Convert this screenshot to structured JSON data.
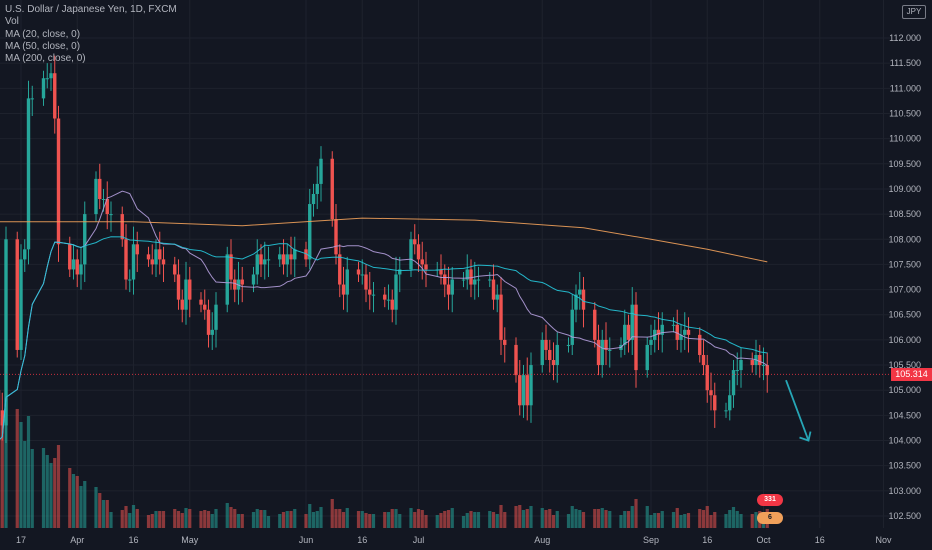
{
  "legend": {
    "title": "U.S. Dollar / Japanese Yen, 1D, FXCM",
    "vol": "Vol",
    "ma20": "MA (20, close, 0)",
    "ma50": "MA (50, close, 0)",
    "ma200": "MA (200, close, 0)"
  },
  "currency": "JPY",
  "last_price_label": "105.314",
  "badges": [
    {
      "text": "331"
    },
    {
      "text": "6"
    }
  ],
  "colors": {
    "background": "#131722",
    "up": "#26a69a",
    "down": "#ef5350",
    "ma20": "#b39ddb",
    "ma50": "#26c6da",
    "ma200": "#f0a05a",
    "forecast_arrow": "#26a6b6",
    "last_price": "#f23645"
  },
  "chart_data": {
    "type": "candlestick",
    "symbol": "USD/JPY",
    "interval": "1D",
    "y_axis": {
      "min": 102.2,
      "max": 113.0,
      "ticks": [
        "102.500",
        "103.000",
        "103.500",
        "104.000",
        "104.500",
        "105.000",
        "105.500",
        "106.000",
        "106.500",
        "107.000",
        "107.500",
        "108.000",
        "108.500",
        "109.000",
        "109.500",
        "110.000",
        "110.500",
        "111.000",
        "111.500",
        "112.000"
      ]
    },
    "x_axis": {
      "tick_labels": [
        "17",
        "Apr",
        "16",
        "May",
        "Jun",
        "16",
        "Jul",
        "Aug",
        "Sep",
        "16",
        "Oct",
        "16",
        "Nov"
      ],
      "tick_dates": [
        "2020-03-17",
        "2020-04-01",
        "2020-04-16",
        "2020-05-01",
        "2020-06-01",
        "2020-06-16",
        "2020-07-01",
        "2020-08-03",
        "2020-09-01",
        "2020-09-16",
        "2020-10-01",
        "2020-10-16",
        "2020-11-02"
      ]
    },
    "close_series": [
      [
        "2020-03-09",
        102.4
      ],
      [
        "2020-03-10",
        105.0
      ],
      [
        "2020-03-11",
        104.6
      ],
      [
        "2020-03-12",
        104.3
      ],
      [
        "2020-03-13",
        108.0
      ],
      [
        "2020-03-16",
        105.8
      ],
      [
        "2020-03-17",
        107.6
      ],
      [
        "2020-03-18",
        107.8
      ],
      [
        "2020-03-19",
        110.8
      ],
      [
        "2020-03-20",
        110.8
      ],
      [
        "2020-03-23",
        111.2
      ],
      [
        "2020-03-24",
        111.2
      ],
      [
        "2020-03-25",
        111.3
      ],
      [
        "2020-03-26",
        110.4
      ],
      [
        "2020-03-27",
        107.9
      ],
      [
        "2020-03-30",
        107.4
      ],
      [
        "2020-03-31",
        107.6
      ],
      [
        "2020-04-01",
        107.3
      ],
      [
        "2020-04-02",
        107.5
      ],
      [
        "2020-04-03",
        108.5
      ],
      [
        "2020-04-06",
        109.2
      ],
      [
        "2020-04-07",
        108.8
      ],
      [
        "2020-04-08",
        108.8
      ],
      [
        "2020-04-09",
        108.5
      ],
      [
        "2020-04-10",
        108.5
      ],
      [
        "2020-04-13",
        108.0
      ],
      [
        "2020-04-14",
        107.2
      ],
      [
        "2020-04-15",
        107.2
      ],
      [
        "2020-04-16",
        107.9
      ],
      [
        "2020-04-17",
        107.7
      ],
      [
        "2020-04-20",
        107.6
      ],
      [
        "2020-04-21",
        107.5
      ],
      [
        "2020-04-22",
        107.8
      ],
      [
        "2020-04-23",
        107.6
      ],
      [
        "2020-04-24",
        107.5
      ],
      [
        "2020-04-27",
        107.3
      ],
      [
        "2020-04-28",
        106.8
      ],
      [
        "2020-04-29",
        106.6
      ],
      [
        "2020-04-30",
        107.2
      ],
      [
        "2020-05-01",
        106.8
      ],
      [
        "2020-05-04",
        106.7
      ],
      [
        "2020-05-05",
        106.6
      ],
      [
        "2020-05-06",
        106.1
      ],
      [
        "2020-05-07",
        106.2
      ],
      [
        "2020-05-08",
        106.7
      ],
      [
        "2020-05-11",
        107.7
      ],
      [
        "2020-05-12",
        107.2
      ],
      [
        "2020-05-13",
        107.0
      ],
      [
        "2020-05-14",
        107.2
      ],
      [
        "2020-05-15",
        107.1
      ],
      [
        "2020-05-18",
        107.3
      ],
      [
        "2020-05-19",
        107.7
      ],
      [
        "2020-05-20",
        107.5
      ],
      [
        "2020-05-21",
        107.6
      ],
      [
        "2020-05-22",
        107.6
      ],
      [
        "2020-05-25",
        107.7
      ],
      [
        "2020-05-26",
        107.5
      ],
      [
        "2020-05-27",
        107.7
      ],
      [
        "2020-05-28",
        107.6
      ],
      [
        "2020-05-29",
        107.8
      ],
      [
        "2020-06-01",
        107.6
      ],
      [
        "2020-06-02",
        108.7
      ],
      [
        "2020-06-03",
        108.9
      ],
      [
        "2020-06-04",
        109.1
      ],
      [
        "2020-06-05",
        109.6
      ],
      [
        "2020-06-08",
        108.4
      ],
      [
        "2020-06-09",
        107.7
      ],
      [
        "2020-06-10",
        107.1
      ],
      [
        "2020-06-11",
        106.9
      ],
      [
        "2020-06-12",
        107.4
      ],
      [
        "2020-06-15",
        107.3
      ],
      [
        "2020-06-16",
        107.3
      ],
      [
        "2020-06-17",
        107.0
      ],
      [
        "2020-06-18",
        106.9
      ],
      [
        "2020-06-19",
        106.9
      ],
      [
        "2020-06-22",
        106.8
      ],
      [
        "2020-06-23",
        106.8
      ],
      [
        "2020-06-24",
        106.6
      ],
      [
        "2020-06-25",
        107.3
      ],
      [
        "2020-06-26",
        107.4
      ],
      [
        "2020-06-29",
        108.0
      ],
      [
        "2020-06-30",
        107.9
      ],
      [
        "2020-07-01",
        107.6
      ],
      [
        "2020-07-02",
        107.5
      ],
      [
        "2020-07-03",
        107.4
      ],
      [
        "2020-07-06",
        107.4
      ],
      [
        "2020-07-07",
        107.3
      ],
      [
        "2020-07-08",
        107.1
      ],
      [
        "2020-07-09",
        106.9
      ],
      [
        "2020-07-10",
        107.2
      ],
      [
        "2020-07-13",
        107.2
      ],
      [
        "2020-07-14",
        107.4
      ],
      [
        "2020-07-15",
        107.1
      ],
      [
        "2020-07-16",
        107.2
      ],
      [
        "2020-07-17",
        107.2
      ],
      [
        "2020-07-20",
        107.2
      ],
      [
        "2020-07-21",
        106.8
      ],
      [
        "2020-07-22",
        106.9
      ],
      [
        "2020-07-23",
        106.0
      ],
      [
        "2020-07-24",
        105.9
      ],
      [
        "2020-07-27",
        105.3
      ],
      [
        "2020-07-28",
        104.7
      ],
      [
        "2020-07-29",
        105.3
      ],
      [
        "2020-07-30",
        104.7
      ],
      [
        "2020-07-31",
        105.5
      ],
      [
        "2020-08-03",
        106.0
      ],
      [
        "2020-08-04",
        105.8
      ],
      [
        "2020-08-05",
        105.6
      ],
      [
        "2020-08-06",
        105.5
      ],
      [
        "2020-08-07",
        105.9
      ],
      [
        "2020-08-10",
        105.9
      ],
      [
        "2020-08-11",
        106.6
      ],
      [
        "2020-08-12",
        106.9
      ],
      [
        "2020-08-13",
        107.0
      ],
      [
        "2020-08-14",
        106.6
      ],
      [
        "2020-08-17",
        106.0
      ],
      [
        "2020-08-18",
        105.5
      ],
      [
        "2020-08-19",
        106.0
      ],
      [
        "2020-08-20",
        105.8
      ],
      [
        "2020-08-21",
        105.8
      ],
      [
        "2020-08-24",
        105.9
      ],
      [
        "2020-08-25",
        106.3
      ],
      [
        "2020-08-26",
        106.0
      ],
      [
        "2020-08-27",
        106.7
      ],
      [
        "2020-08-28",
        105.4
      ],
      [
        "2020-08-31",
        105.9
      ],
      [
        "2020-09-01",
        106.0
      ],
      [
        "2020-09-02",
        106.2
      ],
      [
        "2020-09-03",
        106.1
      ],
      [
        "2020-09-04",
        106.3
      ],
      [
        "2020-09-07",
        106.3
      ],
      [
        "2020-09-08",
        106.0
      ],
      [
        "2020-09-09",
        106.1
      ],
      [
        "2020-09-10",
        106.2
      ],
      [
        "2020-09-11",
        106.1
      ],
      [
        "2020-09-14",
        105.7
      ],
      [
        "2020-09-15",
        105.5
      ],
      [
        "2020-09-16",
        105.0
      ],
      [
        "2020-09-17",
        104.9
      ],
      [
        "2020-09-18",
        104.6
      ],
      [
        "2020-09-21",
        104.6
      ],
      [
        "2020-09-22",
        104.9
      ],
      [
        "2020-09-23",
        105.4
      ],
      [
        "2020-09-24",
        105.4
      ],
      [
        "2020-09-25",
        105.6
      ],
      [
        "2020-09-28",
        105.5
      ],
      [
        "2020-09-29",
        105.7
      ],
      [
        "2020-09-30",
        105.5
      ],
      [
        "2020-10-01",
        105.5
      ],
      [
        "2020-10-02",
        105.3
      ]
    ],
    "moving_averages": [
      {
        "name": "MA (20, close, 0)",
        "key": "ma20",
        "period": 20
      },
      {
        "name": "MA (50, close, 0)",
        "key": "ma50",
        "period": 50
      },
      {
        "name": "MA (200, close, 0)",
        "key": "ma200",
        "points": [
          [
            "2020-03-09",
            108.35
          ],
          [
            "2020-04-16",
            108.35
          ],
          [
            "2020-05-15",
            108.27
          ],
          [
            "2020-06-16",
            108.42
          ],
          [
            "2020-07-16",
            108.38
          ],
          [
            "2020-08-14",
            108.23
          ],
          [
            "2020-09-01",
            108.0
          ],
          [
            "2020-09-16",
            107.8
          ],
          [
            "2020-10-02",
            107.55
          ]
        ]
      }
    ],
    "volume": "shown as histogram bars, unlabeled",
    "last_price": 105.314,
    "annotation": "forecast arrow pointing down from ~2020-10-05 toward ~104.0 around mid-October",
    "grid": true,
    "legend_position": "top-left"
  }
}
